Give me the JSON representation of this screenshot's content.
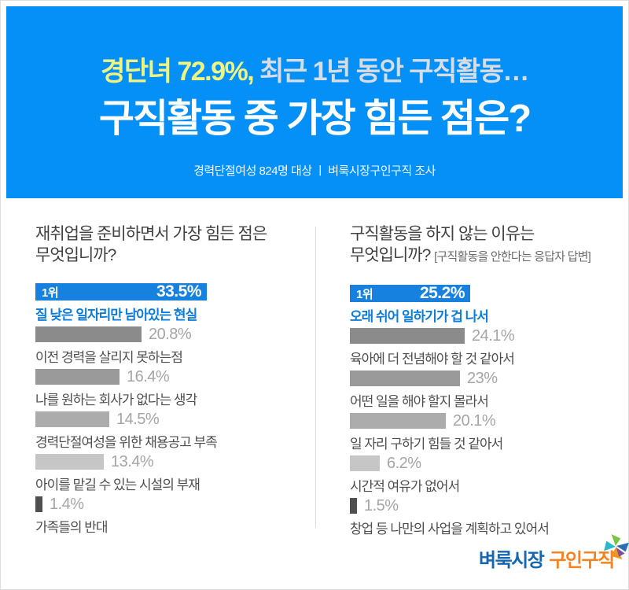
{
  "header": {
    "bg_color": "#0590F8",
    "headline_highlight": "경단녀 72.9%,",
    "headline_highlight_color": "#EFF382",
    "headline_rest": " 최근 1년 동안 구직활동…",
    "headline_rest_color": "#D8DDE3",
    "main_title": "구직활동 중 가장 힘든 점은?",
    "survey_caption": "경력단절여성  824명 대상 ㅣ 벼룩시장구인구직 조사"
  },
  "columns": {
    "left": {
      "title_line1": "재취업을 준비하면서 가장 힘든 점은",
      "title_line2": "무엇입니까?",
      "bracket": "",
      "rank_label": "1위",
      "items": [
        {
          "display": "33.5%",
          "value": 33.5,
          "label": "질 낮은 일자리만 남아있는 현실",
          "color": "#1781E0",
          "rank": true
        },
        {
          "display": "20.8%",
          "value": 20.8,
          "label": "이전 경력을 살리지 못하는점",
          "color": "#8B8B8B"
        },
        {
          "display": "16.4%",
          "value": 16.4,
          "label": "나를 원하는 회사가 없다는 생각",
          "color": "#9A9A9A"
        },
        {
          "display": "14.5%",
          "value": 14.5,
          "label": "경력단절여성을 위한 채용공고 부족",
          "color": "#ACACAC"
        },
        {
          "display": "13.4%",
          "value": 13.4,
          "label": "아이를 맡길 수 있는 시설의 부재",
          "color": "#C6C6C6"
        },
        {
          "display": "1.4%",
          "value": 1.4,
          "label": "가족들의 반대",
          "color": "#4F4F4F"
        }
      ]
    },
    "right": {
      "title_line1": "구직활동을 하지 않는 이유는",
      "title_line2": "무엇입니까?",
      "bracket": "[구직활동을 안한다는 응답자 답변]",
      "rank_label": "1위",
      "items": [
        {
          "display": "25.2%",
          "value": 25.2,
          "label": "오래 쉬어 일하기가 겁 나서",
          "color": "#1781E0",
          "rank": true
        },
        {
          "display": "24.1%",
          "value": 24.1,
          "label": "육아에 더 전념해야 할 것 같아서",
          "color": "#8B8B8B"
        },
        {
          "display": "23%",
          "value": 23,
          "label": "어떤 일을 해야 할지 몰라서",
          "color": "#9A9A9A"
        },
        {
          "display": "20.1%",
          "value": 20.1,
          "label": "일 자리 구하기 힘들 것 같아서",
          "color": "#ACACAC"
        },
        {
          "display": "6.2%",
          "value": 6.2,
          "label": "시간적 여유가 없어서",
          "color": "#C6C6C6"
        },
        {
          "display": "1.5%",
          "value": 1.5,
          "label": "창업 등 나만의 사업을 계획하고 있어서",
          "color": "#4F4F4F"
        }
      ]
    }
  },
  "chart_data": [
    {
      "type": "bar",
      "orientation": "horizontal",
      "title": "재취업을 준비하면서 가장 힘든 점은 무엇입니까?",
      "categories": [
        "질 낮은 일자리만 남아있는 현실",
        "이전 경력을 살리지 못하는점",
        "나를 원하는 회사가 없다는 생각",
        "경력단절여성을 위한 채용공고 부족",
        "아이를 맡길 수 있는 시설의 부재",
        "가족들의 반대"
      ],
      "values": [
        33.5,
        20.8,
        16.4,
        14.5,
        13.4,
        1.4
      ],
      "value_labels": [
        "33.5%",
        "20.8%",
        "16.4%",
        "14.5%",
        "13.4%",
        "1.4%"
      ],
      "highlight_index": 0,
      "highlight_color": "#1781E0",
      "grid": false,
      "legend": false
    },
    {
      "type": "bar",
      "orientation": "horizontal",
      "title": "구직활동을 하지 않는 이유는 무엇입니까? [구직활동을 안한다는 응답자 답변]",
      "categories": [
        "오래 쉬어 일하기가 겁 나서",
        "육아에 더 전념해야 할 것 같아서",
        "어떤 일을 해야 할지 몰라서",
        "일 자리 구하기 힘들 것 같아서",
        "시간적 여유가 없어서",
        "창업 등 나만의 사업을 계획하고 있어서"
      ],
      "values": [
        25.2,
        24.1,
        23,
        20.1,
        6.2,
        1.5
      ],
      "value_labels": [
        "25.2%",
        "24.1%",
        "23%",
        "20.1%",
        "6.2%",
        "1.5%"
      ],
      "highlight_index": 0,
      "highlight_color": "#1781E0",
      "grid": false,
      "legend": false
    }
  ],
  "footer": {
    "logo_part1": "벼룩시장",
    "logo_part1_color": "#1566B0",
    "logo_part2": "구인구직",
    "logo_part2_color": "#F5821F",
    "pinwheel_colors": [
      "#7DC242",
      "#29B9C9",
      "#F6921E",
      "#2E6DB4",
      "#7A52A0"
    ]
  }
}
